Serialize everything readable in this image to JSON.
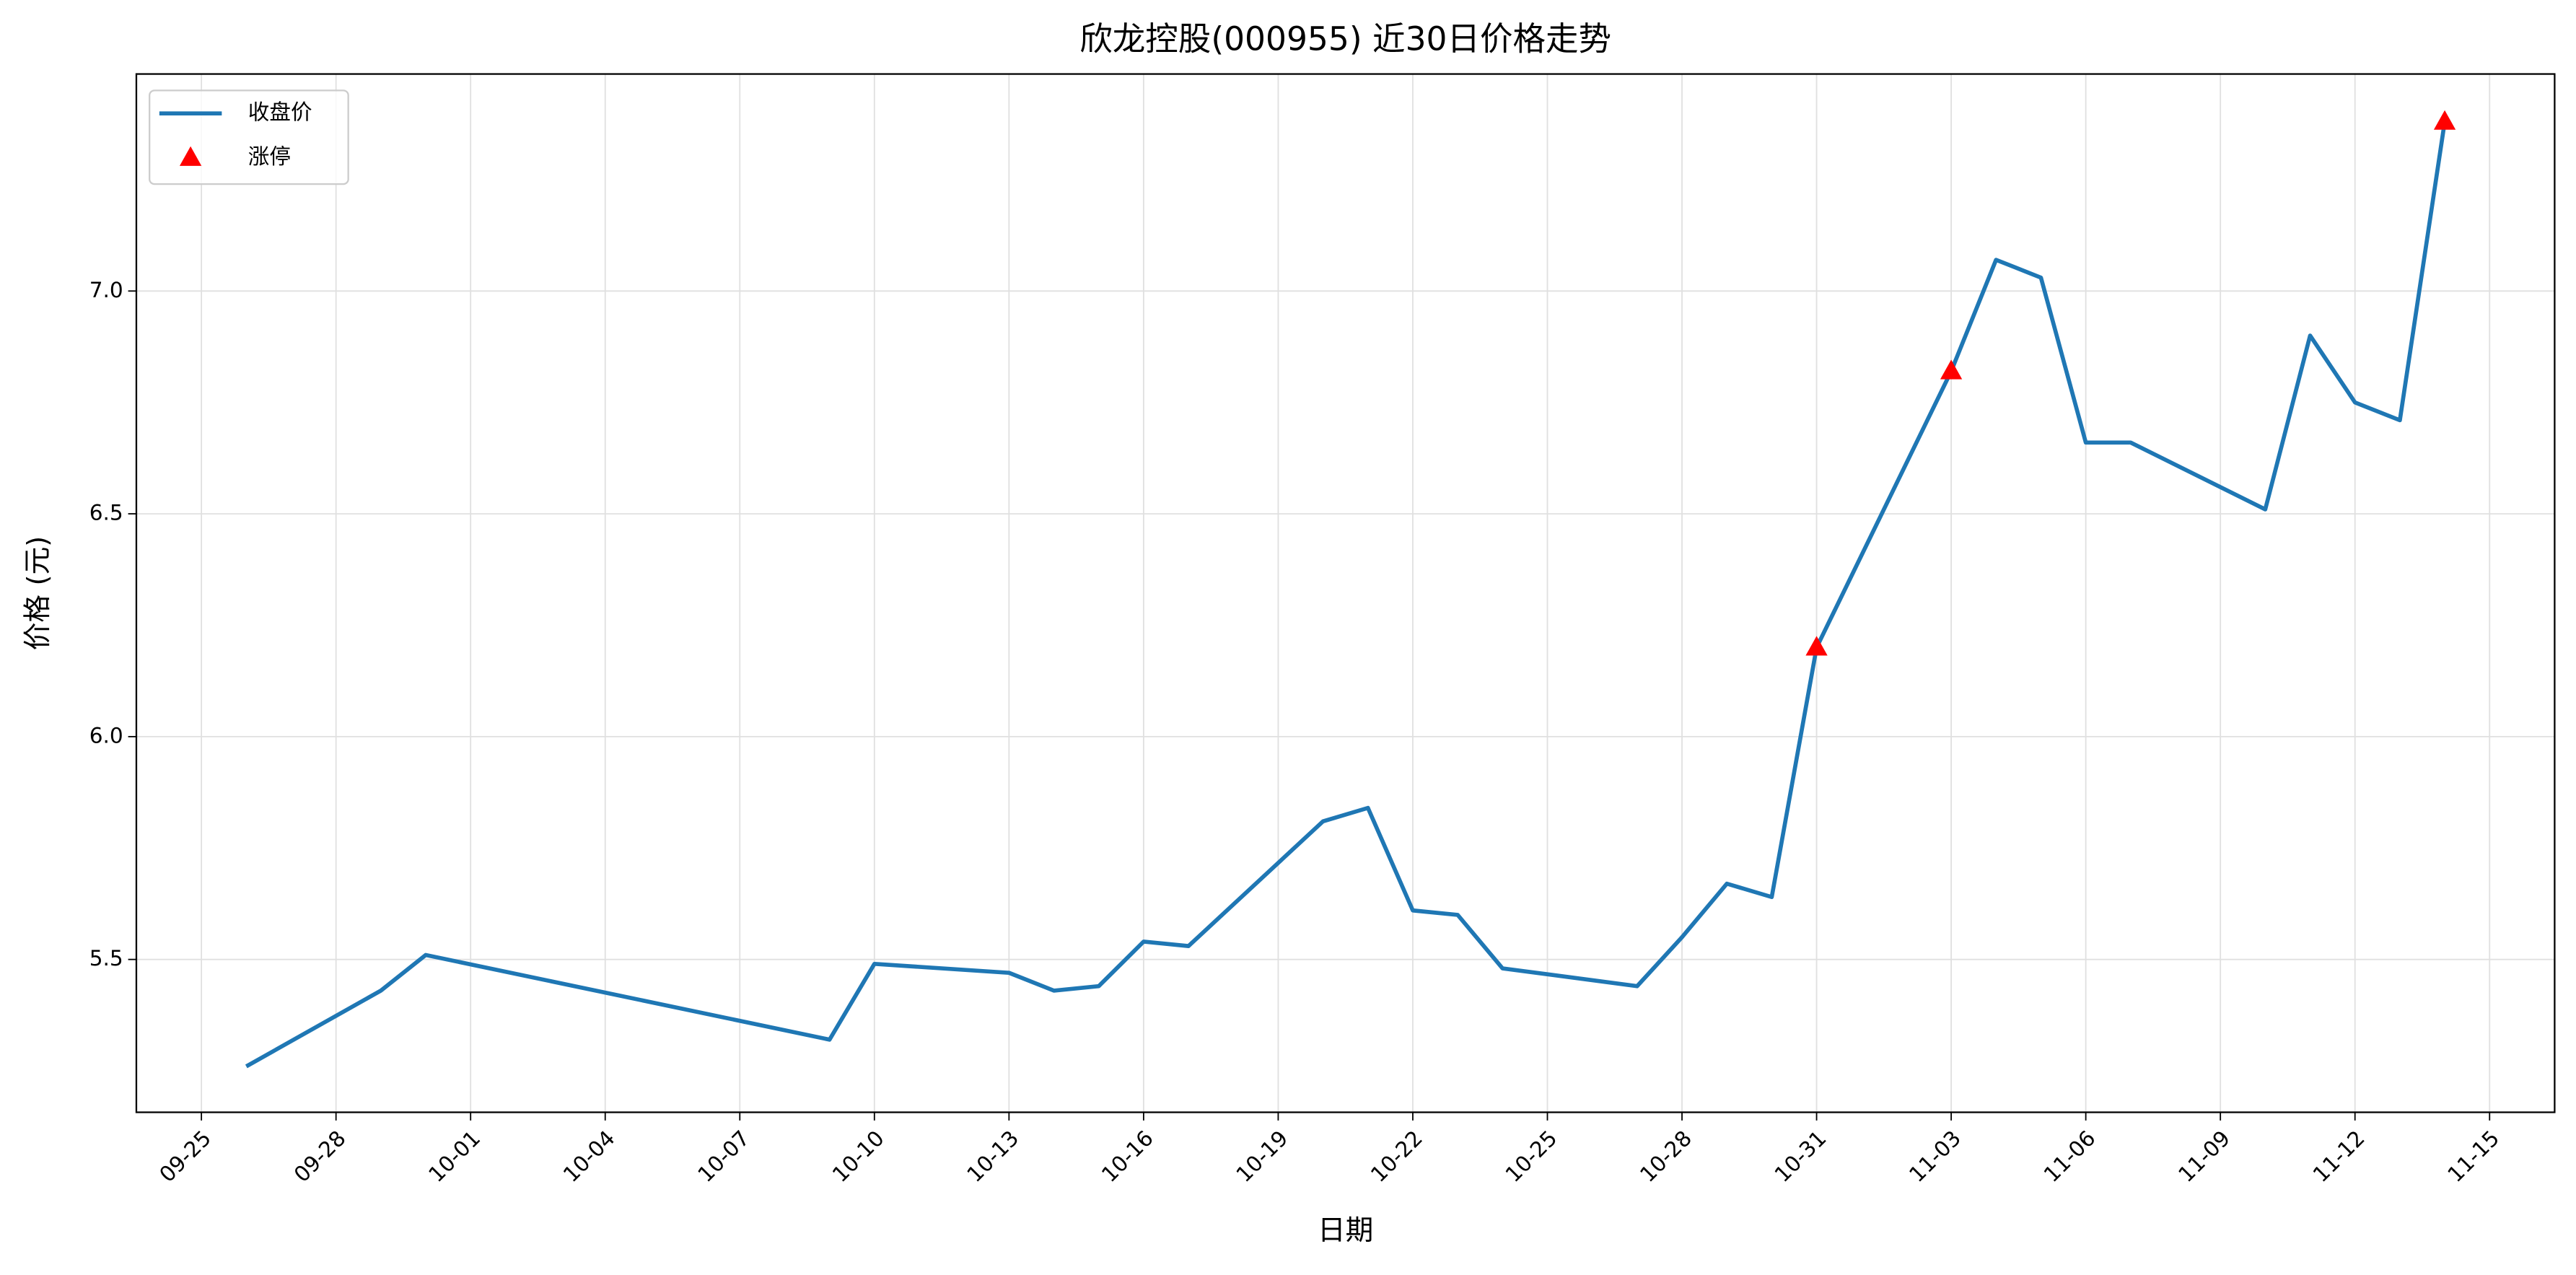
{
  "chart_data": {
    "type": "line",
    "title": "欣龙控股(000955) 近30日价格走势",
    "xlabel": "日期",
    "ylabel": "价格 (元)",
    "series": [
      {
        "name": "收盘价",
        "type": "line",
        "color": "#1f77b4",
        "x": [
          "09-26",
          "09-29",
          "09-30",
          "10-09",
          "10-10",
          "10-13",
          "10-14",
          "10-15",
          "10-16",
          "10-17",
          "10-20",
          "10-21",
          "10-22",
          "10-23",
          "10-24",
          "10-27",
          "10-28",
          "10-29",
          "10-30",
          "10-31",
          "11-03",
          "11-04",
          "11-05",
          "11-06",
          "11-07",
          "11-10",
          "11-11",
          "11-12",
          "11-13",
          "11-14"
        ],
        "values": [
          5.26,
          5.43,
          5.51,
          5.32,
          5.49,
          5.47,
          5.43,
          5.44,
          5.54,
          5.53,
          5.81,
          5.84,
          5.61,
          5.6,
          5.48,
          5.44,
          5.55,
          5.67,
          5.64,
          6.2,
          6.82,
          7.07,
          7.03,
          6.66,
          6.66,
          6.51,
          6.9,
          6.75,
          6.71,
          7.38
        ]
      },
      {
        "name": "涨停",
        "type": "scatter",
        "color": "#ff0000",
        "x": [
          "10-31",
          "11-03",
          "11-14"
        ],
        "values": [
          6.2,
          6.82,
          7.38
        ]
      }
    ],
    "ylim": [
      5.157,
      7.487
    ],
    "yticks": [
      5.5,
      {
        "value": 6.0,
        "label": "6.0"
      },
      6.5,
      {
        "value": 7.0,
        "label": "7.0"
      }
    ],
    "xticks": [
      "09-25",
      "09-28",
      "10-01",
      "10-04",
      "10-07",
      "10-10",
      "10-13",
      "10-16",
      "10-19",
      "10-22",
      "10-25",
      "10-28",
      "10-31",
      "11-03",
      "11-06",
      "11-09",
      "11-12",
      "11-15"
    ],
    "grid": true,
    "legend": "upper left"
  }
}
